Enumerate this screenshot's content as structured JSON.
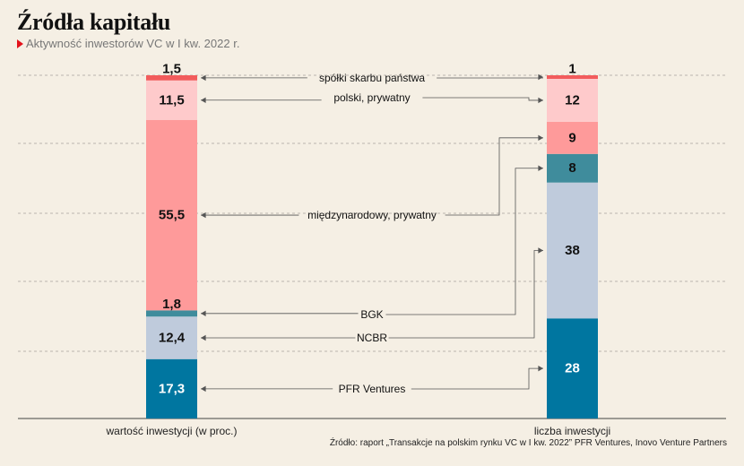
{
  "header": {
    "title": "Źródła kapitału",
    "subtitle": "Aktywność inwestorów VC w I kw. 2022 r."
  },
  "footer": {
    "source": "Źródło: raport „Transakcje na polskim rynku VC w I kw. 2022” PFR Ventures, Inovo Venture Partners"
  },
  "chart_data": {
    "type": "bar",
    "stacked": true,
    "title": "Źródła kapitału",
    "subtitle": "Aktywność inwestorów VC w I kw. 2022 r.",
    "categories": [
      "wartość inwestycji (w proc.)",
      "liczba inwestycji"
    ],
    "series": [
      {
        "name": "PFR Ventures",
        "color": "#0076a0",
        "values": [
          17.3,
          28
        ],
        "labels": [
          "17,3",
          "28"
        ],
        "label_color": "#ffffff"
      },
      {
        "name": "NCBR",
        "color": "#bfcbdc",
        "values": [
          12.4,
          38
        ],
        "labels": [
          "12,4",
          "38"
        ],
        "label_color": "#111111"
      },
      {
        "name": "BGK",
        "color": "#3f8c9c",
        "values": [
          1.8,
          8
        ],
        "labels": [
          "1,8",
          "8"
        ],
        "label_color": "#111111"
      },
      {
        "name": "międzynarodowy, prywatny",
        "color": "#fe9a9a",
        "values": [
          55.5,
          9
        ],
        "labels": [
          "55,5",
          "9"
        ],
        "label_color": "#111111"
      },
      {
        "name": "polski, prywatny",
        "color": "#fecacb",
        "values": [
          11.5,
          12
        ],
        "labels": [
          "11,5",
          "12"
        ],
        "label_color": "#111111"
      },
      {
        "name": "spółki skarbu państwa",
        "color": "#f25c5c",
        "values": [
          1.5,
          1
        ],
        "labels": [
          "1,5",
          "1"
        ],
        "label_color": "#111111"
      }
    ],
    "grid": true,
    "legend": "annotations between bars"
  }
}
